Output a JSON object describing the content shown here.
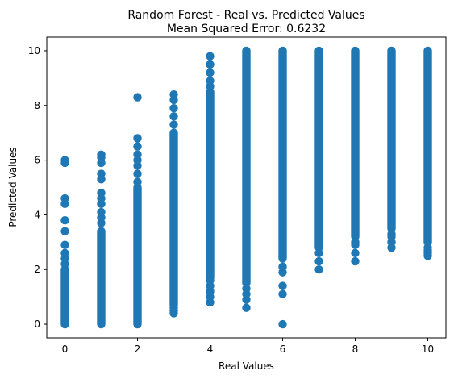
{
  "chart_data": {
    "type": "scatter",
    "title": "Random Forest - Real vs. Predicted Values",
    "subtitle": "Mean Squared Error: 0.6232",
    "xlabel": "Real Values",
    "ylabel": "Predicted Values",
    "xlim": [
      -0.5,
      10.5
    ],
    "ylim": [
      -0.5,
      10.5
    ],
    "x_ticks": [
      0,
      2,
      4,
      6,
      8,
      10
    ],
    "y_ticks": [
      0,
      2,
      4,
      6,
      8,
      10
    ],
    "grid": false,
    "legend": "none",
    "marker_color": "#1f77b4",
    "series": [
      {
        "points_by_real_value": [
          {
            "x": 0,
            "dense_range": [
              0,
              2.0
            ],
            "outliers": [
              2.2,
              2.4,
              2.6,
              2.9,
              3.4,
              3.8,
              4.4,
              4.6,
              5.9,
              6.0
            ]
          },
          {
            "x": 1,
            "dense_range": [
              0,
              3.4
            ],
            "outliers": [
              3.7,
              3.9,
              4.1,
              4.4,
              4.6,
              4.8,
              5.3,
              5.5,
              5.9,
              6.1,
              6.2
            ]
          },
          {
            "x": 2,
            "dense_range": [
              0,
              5.0
            ],
            "outliers": [
              5.2,
              5.5,
              5.8,
              6.0,
              6.2,
              6.5,
              6.8,
              8.3
            ]
          },
          {
            "x": 3,
            "dense_range": [
              0.7,
              7.0
            ],
            "outliers": [
              0.4,
              0.5,
              0.6,
              7.3,
              7.6,
              7.9,
              8.2,
              8.4
            ]
          },
          {
            "x": 4,
            "dense_range": [
              1.7,
              8.5
            ],
            "outliers": [
              0.8,
              1.0,
              1.2,
              1.4,
              1.6,
              8.7,
              8.9,
              9.2,
              9.5,
              9.8
            ]
          },
          {
            "x": 5,
            "dense_range": [
              1.5,
              10.0
            ],
            "outliers": [
              0.6,
              0.9,
              1.1,
              1.3
            ]
          },
          {
            "x": 6,
            "dense_range": [
              2.4,
              10.0
            ],
            "outliers": [
              0.0,
              1.1,
              1.4,
              1.9,
              2.1
            ]
          },
          {
            "x": 7,
            "dense_range": [
              2.8,
              10.0
            ],
            "outliers": [
              2.0,
              2.3,
              2.6
            ]
          },
          {
            "x": 8,
            "dense_range": [
              3.2,
              10.0
            ],
            "outliers": [
              2.3,
              2.6,
              2.9,
              3.0
            ]
          },
          {
            "x": 9,
            "dense_range": [
              3.5,
              10.0
            ],
            "outliers": [
              2.8,
              3.0,
              3.2,
              3.3
            ]
          },
          {
            "x": 10,
            "dense_range": [
              3.0,
              10.0
            ],
            "outliers": [
              2.5,
              2.6,
              2.7,
              2.8
            ]
          }
        ]
      }
    ]
  }
}
